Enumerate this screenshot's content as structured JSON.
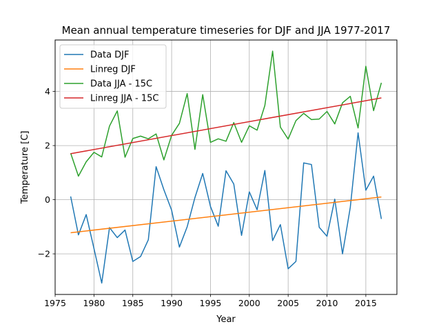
{
  "chart_data": {
    "type": "line",
    "title": "Mean annual temperature timeseries for DJF and JJA 1977-2017",
    "xlabel": "Year",
    "ylabel": "Temperature [C]",
    "xlim": [
      1975,
      2019
    ],
    "ylim": [
      -3.5,
      5.9
    ],
    "xticks": [
      1975,
      1980,
      1985,
      1990,
      1995,
      2000,
      2005,
      2010,
      2015
    ],
    "yticks": [
      -2,
      0,
      2,
      4
    ],
    "ytick_labels": [
      "−2",
      "0",
      "2",
      "4"
    ],
    "grid": true,
    "legend_placement": "top-left",
    "x": [
      1977,
      1978,
      1979,
      1980,
      1981,
      1982,
      1983,
      1984,
      1985,
      1986,
      1987,
      1988,
      1989,
      1990,
      1991,
      1992,
      1993,
      1994,
      1995,
      1996,
      1997,
      1998,
      1999,
      2000,
      2001,
      2002,
      2003,
      2004,
      2005,
      2006,
      2007,
      2008,
      2009,
      2010,
      2011,
      2012,
      2013,
      2014,
      2015,
      2016,
      2017
    ],
    "series": [
      {
        "name": "Data DJF",
        "color": "#1f77b4",
        "values": [
          0.12,
          -1.3,
          -0.55,
          -1.8,
          -3.08,
          -1.03,
          -1.4,
          -1.12,
          -2.28,
          -2.1,
          -1.48,
          1.22,
          0.37,
          -0.39,
          -1.75,
          -1.0,
          0.08,
          0.97,
          -0.25,
          -0.98,
          1.07,
          0.58,
          -1.32,
          0.29,
          -0.37,
          1.08,
          -1.51,
          -0.92,
          -2.55,
          -2.28,
          1.36,
          1.3,
          -1.02,
          -1.35,
          0.02,
          -2.0,
          -0.28,
          2.47,
          0.35,
          0.87,
          -0.71
        ]
      },
      {
        "name": "Linreg DJF",
        "color": "#ff7f0e",
        "line_start": [
          1977,
          -1.22
        ],
        "line_end": [
          2017,
          0.1
        ]
      },
      {
        "name": "Data JJA - 15C",
        "color": "#2ca02c",
        "values": [
          1.72,
          0.87,
          1.4,
          1.75,
          1.58,
          2.72,
          3.28,
          1.57,
          2.26,
          2.35,
          2.25,
          2.43,
          1.47,
          2.38,
          2.82,
          3.92,
          1.86,
          3.88,
          2.12,
          2.25,
          2.16,
          2.85,
          2.12,
          2.73,
          2.57,
          3.48,
          5.49,
          2.68,
          2.24,
          2.92,
          3.19,
          2.96,
          2.98,
          3.26,
          2.8,
          3.58,
          3.82,
          2.65,
          4.93,
          3.29,
          4.32
        ]
      },
      {
        "name": "Linreg JJA - 15C",
        "color": "#d62728",
        "line_start": [
          1977,
          1.7
        ],
        "line_end": [
          2017,
          3.76
        ]
      }
    ]
  }
}
